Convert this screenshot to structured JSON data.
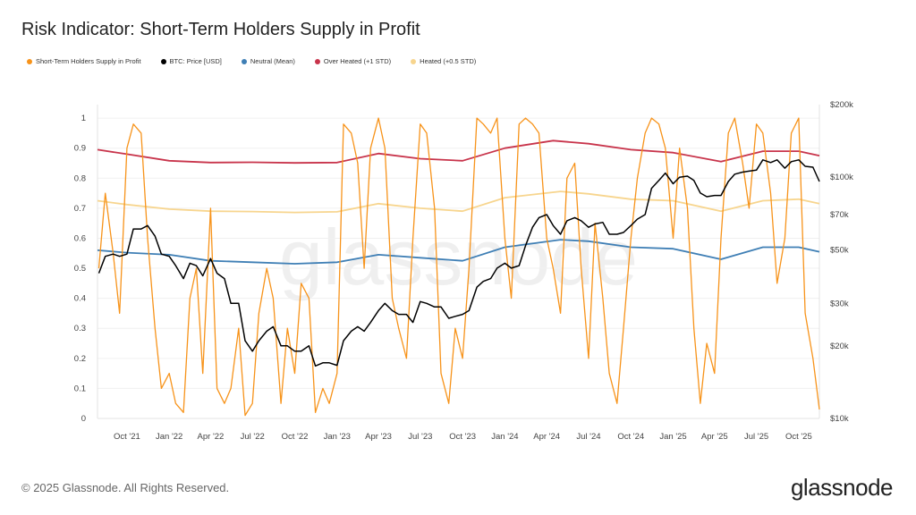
{
  "chart_data": {
    "type": "line",
    "title": "Risk Indicator: Short-Term Holders Supply in Profit",
    "x_range": [
      "2021-07-29",
      "2025-11-15"
    ],
    "x_ticks": [
      {
        "date": "2021-10-01",
        "label": "Oct '21"
      },
      {
        "date": "2022-01-01",
        "label": "Jan '22"
      },
      {
        "date": "2022-04-01",
        "label": "Apr '22"
      },
      {
        "date": "2022-07-01",
        "label": "Jul '22"
      },
      {
        "date": "2022-10-01",
        "label": "Oct '22"
      },
      {
        "date": "2023-01-01",
        "label": "Jan '23"
      },
      {
        "date": "2023-04-01",
        "label": "Apr '23"
      },
      {
        "date": "2023-07-01",
        "label": "Jul '23"
      },
      {
        "date": "2023-10-01",
        "label": "Oct '23"
      },
      {
        "date": "2024-01-01",
        "label": "Jan '24"
      },
      {
        "date": "2024-04-01",
        "label": "Apr '24"
      },
      {
        "date": "2024-07-01",
        "label": "Jul '24"
      },
      {
        "date": "2024-10-01",
        "label": "Oct '24"
      },
      {
        "date": "2025-01-01",
        "label": "Jan '25"
      },
      {
        "date": "2025-04-01",
        "label": "Apr '25"
      },
      {
        "date": "2025-07-01",
        "label": "Jul '25"
      },
      {
        "date": "2025-10-01",
        "label": "Oct '25"
      }
    ],
    "y_left": {
      "range": [
        0,
        1.045
      ],
      "ticks": [
        0,
        0.1,
        0.2,
        0.3,
        0.4,
        0.5,
        0.6,
        0.7,
        0.8,
        0.9,
        1
      ],
      "tick_labels": [
        "0",
        "0.1",
        "0.2",
        "0.3",
        "0.4",
        "0.5",
        "0.6",
        "0.7",
        "0.8",
        "0.9",
        "1"
      ]
    },
    "y_right": {
      "scale": "log",
      "range": [
        10000,
        200000
      ],
      "ticks": [
        10000,
        20000,
        30000,
        50000,
        70000,
        100000,
        200000
      ],
      "tick_labels": [
        "$10k",
        "$20k",
        "$30k",
        "$50k",
        "$70k",
        "$100k",
        "$200k"
      ]
    },
    "grid": true,
    "legend_placement": "top-left",
    "watermark": "glassnode",
    "x": [
      "2021-08-01",
      "2021-08-15",
      "2021-09-01",
      "2021-09-15",
      "2021-10-01",
      "2021-10-15",
      "2021-11-01",
      "2021-11-15",
      "2021-12-01",
      "2021-12-15",
      "2022-01-01",
      "2022-01-15",
      "2022-02-01",
      "2022-02-15",
      "2022-03-01",
      "2022-03-15",
      "2022-04-01",
      "2022-04-15",
      "2022-05-01",
      "2022-05-15",
      "2022-06-01",
      "2022-06-15",
      "2022-07-01",
      "2022-07-15",
      "2022-08-01",
      "2022-08-15",
      "2022-09-01",
      "2022-09-15",
      "2022-10-01",
      "2022-10-15",
      "2022-11-01",
      "2022-11-15",
      "2022-12-01",
      "2022-12-15",
      "2023-01-01",
      "2023-01-15",
      "2023-02-01",
      "2023-02-15",
      "2023-03-01",
      "2023-03-15",
      "2023-04-01",
      "2023-04-15",
      "2023-05-01",
      "2023-05-15",
      "2023-06-01",
      "2023-06-15",
      "2023-07-01",
      "2023-07-15",
      "2023-08-01",
      "2023-08-15",
      "2023-09-01",
      "2023-09-15",
      "2023-10-01",
      "2023-10-15",
      "2023-11-01",
      "2023-11-15",
      "2023-12-01",
      "2023-12-15",
      "2024-01-01",
      "2024-01-15",
      "2024-02-01",
      "2024-02-15",
      "2024-03-01",
      "2024-03-15",
      "2024-04-01",
      "2024-04-15",
      "2024-05-01",
      "2024-05-15",
      "2024-06-01",
      "2024-06-15",
      "2024-07-01",
      "2024-07-15",
      "2024-08-01",
      "2024-08-15",
      "2024-09-01",
      "2024-09-15",
      "2024-10-01",
      "2024-10-15",
      "2024-11-01",
      "2024-11-15",
      "2024-12-01",
      "2024-12-15",
      "2025-01-01",
      "2025-01-15",
      "2025-02-01",
      "2025-02-15",
      "2025-03-01",
      "2025-03-15",
      "2025-04-01",
      "2025-04-15",
      "2025-05-01",
      "2025-05-15",
      "2025-06-01",
      "2025-06-15",
      "2025-07-01",
      "2025-07-15",
      "2025-08-01",
      "2025-08-15",
      "2025-09-01",
      "2025-09-15",
      "2025-10-01",
      "2025-10-15",
      "2025-11-01",
      "2025-11-15"
    ],
    "series": [
      {
        "name": "Short-Term Holders Supply in Profit",
        "axis": "left",
        "color": "#f7931a",
        "values": [
          0.5,
          0.75,
          0.55,
          0.35,
          0.9,
          0.98,
          0.95,
          0.6,
          0.3,
          0.1,
          0.15,
          0.05,
          0.02,
          0.4,
          0.5,
          0.15,
          0.7,
          0.1,
          0.05,
          0.1,
          0.3,
          0.01,
          0.05,
          0.35,
          0.5,
          0.4,
          0.05,
          0.3,
          0.15,
          0.45,
          0.4,
          0.02,
          0.1,
          0.05,
          0.15,
          0.98,
          0.95,
          0.85,
          0.5,
          0.9,
          1.0,
          0.9,
          0.4,
          0.3,
          0.2,
          0.6,
          0.98,
          0.95,
          0.7,
          0.15,
          0.05,
          0.3,
          0.2,
          0.5,
          1.0,
          0.98,
          0.95,
          1.0,
          0.6,
          0.4,
          0.98,
          1.0,
          0.98,
          0.95,
          0.6,
          0.5,
          0.35,
          0.8,
          0.85,
          0.5,
          0.2,
          0.65,
          0.4,
          0.15,
          0.05,
          0.3,
          0.6,
          0.8,
          0.95,
          1.0,
          0.98,
          0.9,
          0.6,
          0.9,
          0.7,
          0.3,
          0.05,
          0.25,
          0.15,
          0.6,
          0.95,
          1.0,
          0.85,
          0.7,
          0.98,
          0.95,
          0.75,
          0.45,
          0.6,
          0.95,
          1.0,
          0.35,
          0.2,
          0.03
        ]
      },
      {
        "name": "BTC: Price [USD]",
        "axis": "right",
        "color": "#000000",
        "values": [
          40000,
          47000,
          48000,
          47000,
          48000,
          61000,
          61000,
          63000,
          57000,
          48000,
          47000,
          43000,
          38000,
          44000,
          43000,
          39000,
          46000,
          40000,
          38000,
          30000,
          30000,
          21000,
          19000,
          21000,
          23000,
          24000,
          20000,
          20000,
          19000,
          19000,
          20000,
          16500,
          17000,
          17000,
          16600,
          21000,
          23000,
          24000,
          23000,
          25000,
          28000,
          30000,
          28000,
          27000,
          27000,
          25000,
          30500,
          30000,
          29000,
          29000,
          26000,
          26500,
          27000,
          28000,
          35000,
          37000,
          38000,
          42000,
          44000,
          42000,
          43000,
          52000,
          62000,
          68000,
          70000,
          63000,
          58000,
          66000,
          68000,
          66000,
          62000,
          64000,
          65000,
          58000,
          58000,
          59000,
          63000,
          67000,
          70000,
          90000,
          97000,
          104000,
          94000,
          100000,
          101000,
          97000,
          86000,
          83000,
          84000,
          84000,
          96000,
          103000,
          105000,
          106000,
          107000,
          118000,
          115000,
          118000,
          109000,
          116000,
          118000,
          111000,
          110000,
          96000
        ]
      },
      {
        "name": "Neutral (Mean)",
        "axis": "left",
        "color": "#3f7fb5",
        "points": [
          [
            "2021-07-29",
            0.56
          ],
          [
            "2021-10-01",
            0.552
          ],
          [
            "2022-01-01",
            0.545
          ],
          [
            "2022-04-01",
            0.525
          ],
          [
            "2022-07-01",
            0.52
          ],
          [
            "2022-10-01",
            0.515
          ],
          [
            "2023-01-01",
            0.52
          ],
          [
            "2023-04-01",
            0.545
          ],
          [
            "2023-07-01",
            0.535
          ],
          [
            "2023-10-01",
            0.525
          ],
          [
            "2024-01-01",
            0.57
          ],
          [
            "2024-05-01",
            0.595
          ],
          [
            "2024-07-01",
            0.59
          ],
          [
            "2024-10-01",
            0.57
          ],
          [
            "2025-01-01",
            0.565
          ],
          [
            "2025-04-15",
            0.53
          ],
          [
            "2025-07-15",
            0.57
          ],
          [
            "2025-10-01",
            0.57
          ],
          [
            "2025-11-15",
            0.555
          ]
        ]
      },
      {
        "name": "Over Heated (+1 STD)",
        "axis": "left",
        "color": "#c8344b",
        "points": [
          [
            "2021-07-29",
            0.895
          ],
          [
            "2021-10-01",
            0.88
          ],
          [
            "2022-01-01",
            0.858
          ],
          [
            "2022-04-01",
            0.852
          ],
          [
            "2022-07-01",
            0.853
          ],
          [
            "2022-10-01",
            0.851
          ],
          [
            "2023-01-01",
            0.852
          ],
          [
            "2023-04-01",
            0.882
          ],
          [
            "2023-07-01",
            0.865
          ],
          [
            "2023-10-01",
            0.858
          ],
          [
            "2024-01-01",
            0.9
          ],
          [
            "2024-04-15",
            0.925
          ],
          [
            "2024-07-01",
            0.915
          ],
          [
            "2024-10-01",
            0.895
          ],
          [
            "2025-01-01",
            0.885
          ],
          [
            "2025-04-15",
            0.855
          ],
          [
            "2025-07-15",
            0.89
          ],
          [
            "2025-10-01",
            0.89
          ],
          [
            "2025-11-15",
            0.875
          ]
        ]
      },
      {
        "name": "Heated (+0.5 STD)",
        "axis": "left",
        "color": "#f7d58e",
        "points": [
          [
            "2021-07-29",
            0.725
          ],
          [
            "2021-10-01",
            0.712
          ],
          [
            "2022-01-01",
            0.697
          ],
          [
            "2022-04-01",
            0.69
          ],
          [
            "2022-07-01",
            0.689
          ],
          [
            "2022-10-01",
            0.686
          ],
          [
            "2023-01-01",
            0.688
          ],
          [
            "2023-04-01",
            0.715
          ],
          [
            "2023-07-01",
            0.7
          ],
          [
            "2023-10-01",
            0.69
          ],
          [
            "2024-01-01",
            0.735
          ],
          [
            "2024-05-01",
            0.756
          ],
          [
            "2024-07-01",
            0.748
          ],
          [
            "2024-10-01",
            0.73
          ],
          [
            "2025-01-01",
            0.725
          ],
          [
            "2025-04-15",
            0.69
          ],
          [
            "2025-07-15",
            0.725
          ],
          [
            "2025-10-01",
            0.73
          ],
          [
            "2025-11-15",
            0.715
          ]
        ]
      }
    ]
  },
  "footer": {
    "copyright": "© 2025 Glassnode. All Rights Reserved.",
    "logo": "glassnode"
  }
}
